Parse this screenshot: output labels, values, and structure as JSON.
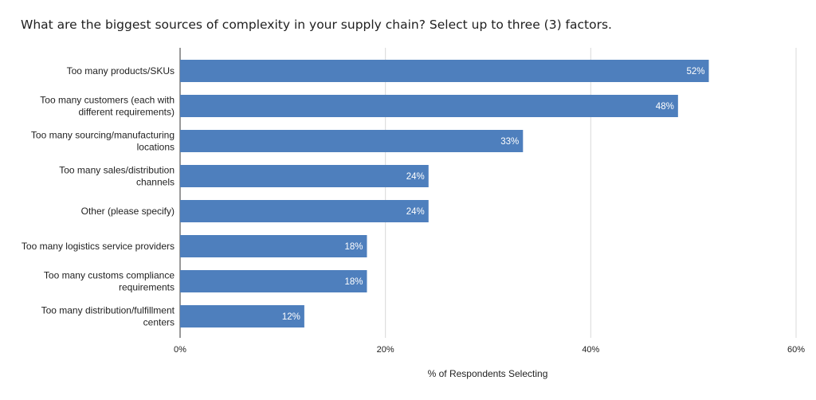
{
  "chart_data": {
    "type": "bar",
    "orientation": "horizontal",
    "title": "What are the biggest sources of complexity in your supply chain? Select up to three (3) factors.",
    "xlabel": "% of Respondents Selecting",
    "ylabel": "",
    "categories": [
      "Too many products/SKUs",
      "Too many customers (each with different requirements)",
      "Too many sourcing/manufacturing locations",
      "Too many sales/distribution channels",
      "Other (please specify)",
      "Too many logistics service providers",
      "Too many customs compliance requirements",
      "Too many distribution/fulfillment centers"
    ],
    "category_lines": [
      [
        "Too many products/SKUs"
      ],
      [
        "Too many customers (each with",
        "different requirements)"
      ],
      [
        "Too many sourcing/manufacturing",
        "locations"
      ],
      [
        "Too many sales/distribution",
        "channels"
      ],
      [
        "Other (please specify)"
      ],
      [
        "Too many logistics service providers"
      ],
      [
        "Too many customs compliance",
        "requirements"
      ],
      [
        "Too many distribution/fulfillment",
        "centers"
      ]
    ],
    "values": [
      51.5,
      48.5,
      33.4,
      24.2,
      24.2,
      18.2,
      18.2,
      12.1
    ],
    "data_labels": [
      "52%",
      "48%",
      "33%",
      "24%",
      "24%",
      "18%",
      "18%",
      "12%"
    ],
    "xlim": [
      0,
      60
    ],
    "xticks": [
      0,
      20,
      40,
      60
    ],
    "xtick_labels": [
      "0%",
      "20%",
      "40%",
      "60%"
    ],
    "grid": true,
    "legend": "none",
    "bar_color": "#4e7fbd",
    "grid_color": "#d9d9d9"
  }
}
